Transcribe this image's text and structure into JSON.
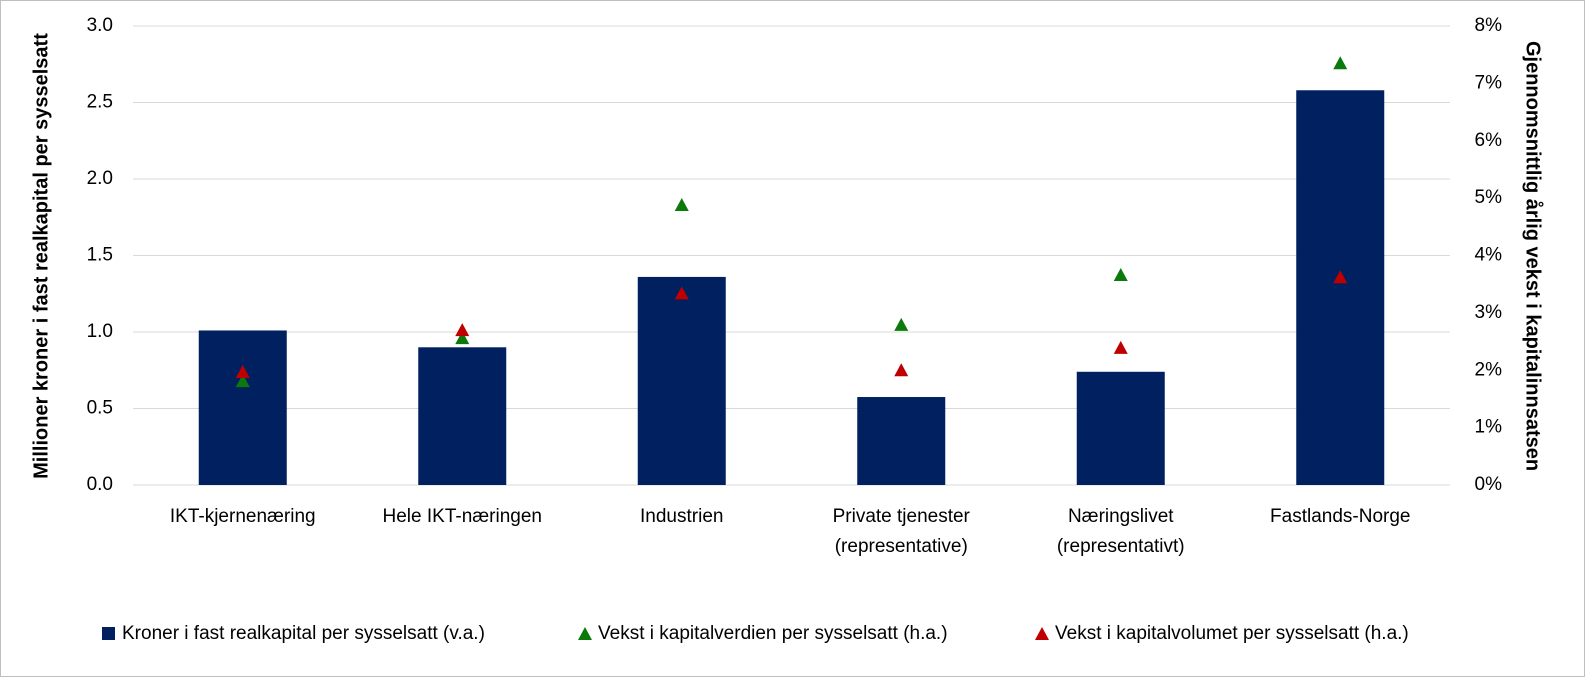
{
  "chart_data": {
    "type": "bar",
    "y_label": "Millioner kroner i fast realkapital per sysselsatt",
    "y2_label": "Gjennomsnittlig årlig vekst i kapitalinnsatsen",
    "categories": [
      [
        "IKT-kjernenæring"
      ],
      [
        "Hele IKT-næringen"
      ],
      [
        "Industrien"
      ],
      [
        "Private tjenester",
        "(representative)"
      ],
      [
        "Næringslivet",
        "(representativt)"
      ],
      [
        "Fastlands-Norge"
      ]
    ],
    "series": [
      {
        "name": "Kroner i fast realkapital per sysselsatt (v.a.)",
        "type": "bar",
        "color": "#002060",
        "values": [
          1.01,
          0.9,
          1.36,
          0.575,
          0.74,
          2.58
        ]
      },
      {
        "name": "Vekst i kapitalverdien per sysselsatt (h.a.)",
        "type": "scatter",
        "axis": "y2",
        "color": "#0b7a0b",
        "values": [
          1.81,
          2.56,
          4.88,
          2.79,
          3.66,
          7.35
        ]
      },
      {
        "name": "Vekst i kapitalvolumet per sysselsatt (h.a.)",
        "type": "scatter",
        "axis": "y2",
        "color": "#c00000",
        "values": [
          1.97,
          2.7,
          3.34,
          2.0,
          2.39,
          3.62
        ]
      }
    ],
    "ylim": [
      0,
      3
    ],
    "yticks": [
      {
        "value": 0,
        "label": "0.0"
      },
      0.5,
      {
        "value": 1,
        "label": "1.0"
      },
      1.5,
      {
        "value": 2,
        "label": "2.0"
      },
      2.5,
      {
        "value": 3,
        "label": "3.0"
      }
    ],
    "y2lim": [
      0,
      8
    ],
    "y2ticks": [
      {
        "value": 0,
        "label": "0%"
      },
      {
        "value": 1,
        "label": "1%"
      },
      {
        "value": 2,
        "label": "2%"
      },
      {
        "value": 3,
        "label": "3%"
      },
      {
        "value": 4,
        "label": "4%"
      },
      {
        "value": 5,
        "label": "5%"
      },
      {
        "value": 6,
        "label": "6%"
      },
      {
        "value": 7,
        "label": "7%"
      },
      {
        "value": 8,
        "label": "8%"
      }
    ],
    "grid": true,
    "legend": "bottom"
  }
}
